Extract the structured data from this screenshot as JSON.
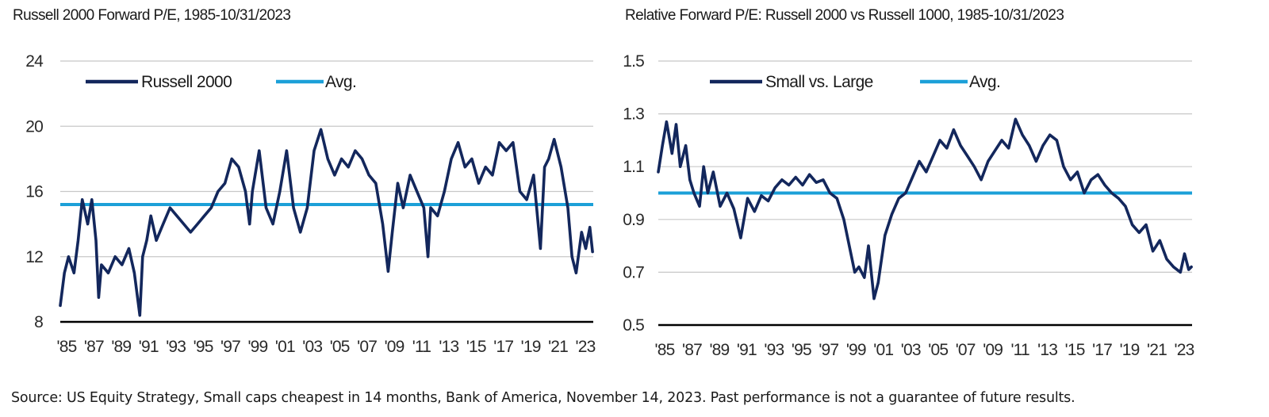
{
  "colors": {
    "series": "#13275c",
    "avg": "#1ca0d8",
    "grid": "#c8c8c8",
    "axis": "#000000"
  },
  "chart_data": [
    {
      "type": "line",
      "title": "Russell 2000 Forward P/E, 1985-10/31/2023",
      "xlabel": "",
      "ylabel": "",
      "x_tick_labels": [
        "'85",
        "'87",
        "'89",
        "'91",
        "'93",
        "'95",
        "'97",
        "'99",
        "'01",
        "'03",
        "'05",
        "'07",
        "'09",
        "'11",
        "'13",
        "'15",
        "'17",
        "'19",
        "'21",
        "'23"
      ],
      "y_ticks": [
        "8",
        "12",
        "16",
        "20",
        "24"
      ],
      "xlim": [
        1985,
        2023.85
      ],
      "ylim": [
        8,
        24
      ],
      "grid": true,
      "legend": "top-left",
      "avg": 15.2,
      "series": [
        {
          "name": "Russell 2000",
          "x": [
            1985.0,
            1985.3,
            1985.6,
            1986.0,
            1986.3,
            1986.6,
            1987.0,
            1987.3,
            1987.6,
            1987.8,
            1988.0,
            1988.5,
            1989.0,
            1989.5,
            1990.0,
            1990.4,
            1990.8,
            1991.0,
            1991.3,
            1991.6,
            1992.0,
            1992.5,
            1993.0,
            1993.5,
            1994.0,
            1994.5,
            1995.0,
            1995.5,
            1996.0,
            1996.5,
            1997.0,
            1997.5,
            1998.0,
            1998.5,
            1998.8,
            1999.0,
            1999.5,
            2000.0,
            2000.5,
            2001.0,
            2001.5,
            2002.0,
            2002.5,
            2003.0,
            2003.5,
            2004.0,
            2004.5,
            2005.0,
            2005.5,
            2006.0,
            2006.5,
            2007.0,
            2007.5,
            2008.0,
            2008.5,
            2008.9,
            2009.2,
            2009.6,
            2010.0,
            2010.5,
            2011.0,
            2011.5,
            2011.8,
            2012.0,
            2012.5,
            2013.0,
            2013.5,
            2014.0,
            2014.5,
            2015.0,
            2015.5,
            2016.0,
            2016.5,
            2017.0,
            2017.5,
            2018.0,
            2018.5,
            2019.0,
            2019.5,
            2020.0,
            2020.3,
            2020.6,
            2021.0,
            2021.5,
            2022.0,
            2022.3,
            2022.6,
            2023.0,
            2023.3,
            2023.6,
            2023.8
          ],
          "values": [
            9.0,
            11.0,
            12.0,
            11.0,
            13.0,
            15.5,
            14.0,
            15.5,
            13.0,
            9.5,
            11.5,
            11.0,
            12.0,
            11.5,
            12.5,
            11.0,
            8.4,
            12.0,
            13.0,
            14.5,
            13.0,
            14.0,
            15.0,
            14.5,
            14.0,
            13.5,
            14.0,
            14.5,
            15.0,
            16.0,
            16.5,
            18.0,
            17.5,
            16.0,
            14.0,
            16.0,
            18.5,
            15.0,
            14.0,
            16.0,
            18.5,
            15.0,
            13.5,
            15.0,
            18.5,
            19.8,
            18.0,
            17.0,
            18.0,
            17.5,
            18.5,
            18.0,
            17.0,
            16.5,
            14.0,
            11.1,
            13.5,
            16.5,
            15.0,
            17.0,
            16.0,
            15.0,
            12.0,
            15.0,
            14.5,
            16.0,
            18.0,
            19.0,
            17.5,
            18.0,
            16.5,
            17.5,
            17.0,
            19.0,
            18.5,
            19.0,
            16.0,
            15.5,
            17.0,
            12.5,
            17.5,
            18.0,
            19.2,
            17.5,
            15.0,
            12.0,
            11.0,
            13.5,
            12.5,
            13.8,
            12.3
          ]
        }
      ]
    },
    {
      "type": "line",
      "title": "Relative Forward P/E: Russell 2000 vs Russell 1000, 1985-10/31/2023",
      "xlabel": "",
      "ylabel": "",
      "x_tick_labels": [
        "'85",
        "'87",
        "'89",
        "'91",
        "'93",
        "'95",
        "'97",
        "'99",
        "'01",
        "'03",
        "'05",
        "'07",
        "'09",
        "'11",
        "'13",
        "'15",
        "'17",
        "'19",
        "'21",
        "'23"
      ],
      "y_ticks": [
        "0.5",
        "0.7",
        "0.9",
        "1.1",
        "1.3",
        "1.5"
      ],
      "xlim": [
        1985,
        2023.85
      ],
      "ylim": [
        0.5,
        1.5
      ],
      "grid": true,
      "legend": "top-left",
      "avg": 1.0,
      "series": [
        {
          "name": "Small vs. Large",
          "x": [
            1985.0,
            1985.3,
            1985.6,
            1986.0,
            1986.3,
            1986.6,
            1987.0,
            1987.3,
            1987.6,
            1988.0,
            1988.3,
            1988.6,
            1989.0,
            1989.5,
            1990.0,
            1990.5,
            1991.0,
            1991.5,
            1992.0,
            1992.5,
            1993.0,
            1993.5,
            1994.0,
            1994.5,
            1995.0,
            1995.5,
            1996.0,
            1996.5,
            1997.0,
            1997.5,
            1998.0,
            1998.5,
            1998.9,
            1999.3,
            1999.6,
            2000.0,
            2000.3,
            2000.7,
            2001.0,
            2001.5,
            2002.0,
            2002.5,
            2003.0,
            2003.5,
            2004.0,
            2004.5,
            2005.0,
            2005.5,
            2006.0,
            2006.5,
            2007.0,
            2007.5,
            2008.0,
            2008.5,
            2009.0,
            2009.5,
            2010.0,
            2010.5,
            2011.0,
            2011.5,
            2012.0,
            2012.5,
            2013.0,
            2013.5,
            2014.0,
            2014.5,
            2015.0,
            2015.5,
            2016.0,
            2016.5,
            2017.0,
            2017.5,
            2018.0,
            2018.5,
            2019.0,
            2019.5,
            2020.0,
            2020.5,
            2021.0,
            2021.5,
            2022.0,
            2022.5,
            2023.0,
            2023.3,
            2023.6,
            2023.8
          ],
          "values": [
            1.08,
            1.18,
            1.27,
            1.15,
            1.26,
            1.1,
            1.18,
            1.05,
            1.0,
            0.95,
            1.1,
            1.0,
            1.08,
            0.95,
            1.0,
            0.94,
            0.83,
            0.98,
            0.93,
            0.99,
            0.97,
            1.02,
            1.05,
            1.03,
            1.06,
            1.03,
            1.07,
            1.04,
            1.05,
            1.0,
            0.98,
            0.9,
            0.8,
            0.7,
            0.72,
            0.68,
            0.8,
            0.6,
            0.66,
            0.84,
            0.92,
            0.98,
            1.0,
            1.06,
            1.12,
            1.08,
            1.14,
            1.2,
            1.17,
            1.24,
            1.18,
            1.14,
            1.1,
            1.05,
            1.12,
            1.16,
            1.2,
            1.17,
            1.28,
            1.22,
            1.18,
            1.12,
            1.18,
            1.22,
            1.2,
            1.1,
            1.05,
            1.08,
            1.0,
            1.05,
            1.07,
            1.03,
            1.0,
            0.98,
            0.95,
            0.88,
            0.85,
            0.88,
            0.78,
            0.82,
            0.75,
            0.72,
            0.7,
            0.77,
            0.71,
            0.72
          ]
        }
      ]
    }
  ],
  "source": "Source: US Equity Strategy, Small caps cheapest in 14 months, Bank of America, November 14, 2023. Past performance is not a guarantee of future results."
}
